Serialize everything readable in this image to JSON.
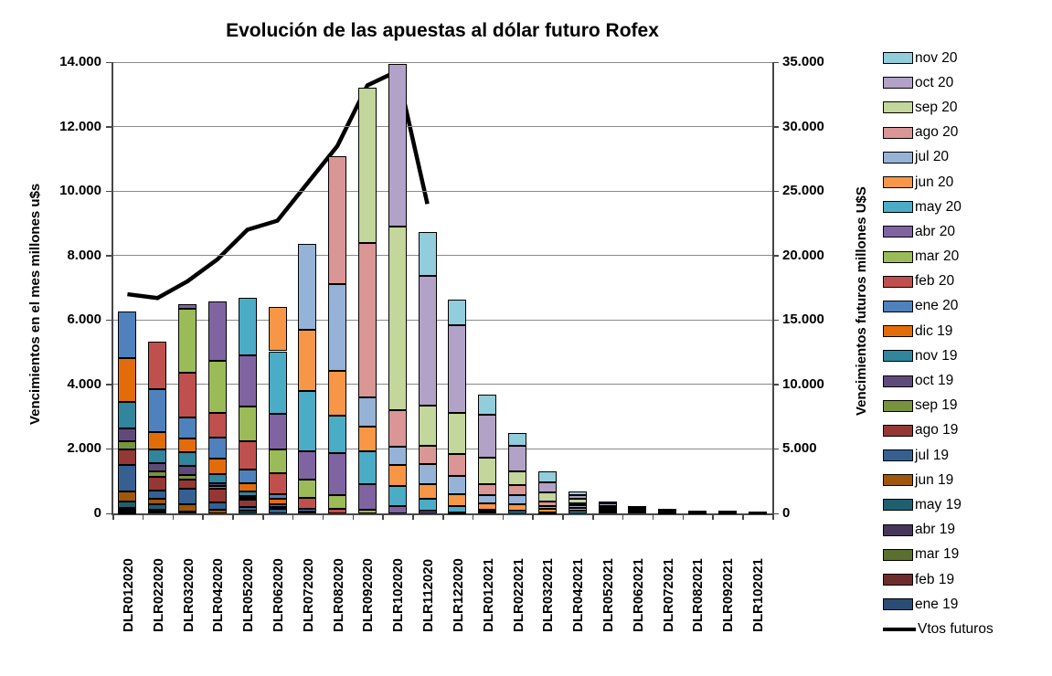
{
  "title": "Evolución de las apuestas al dólar futuro Rofex",
  "left_axis": {
    "title": "Vencimientos en el mes millones u$s",
    "max": 14000,
    "tick_step": 2000,
    "tick_labels": [
      "0",
      "2.000",
      "4.000",
      "6.000",
      "8.000",
      "10.000",
      "12.000",
      "14.000"
    ]
  },
  "right_axis": {
    "title": "Vencimientos futuros millones U$S",
    "max": 35000,
    "tick_step": 5000,
    "tick_labels": [
      "0",
      "5.000",
      "10.000",
      "15.000",
      "20.000",
      "25.000",
      "30.000",
      "35.000"
    ]
  },
  "chart_data": {
    "type": "bar",
    "subtype": "stacked-column-with-line",
    "grid": true,
    "legend_position": "right",
    "legend_order": "top-is-last-stacked-series",
    "categories": [
      "DLR012020",
      "DLR022020",
      "DLR032020",
      "DLR042020",
      "DLR052020",
      "DLR062020",
      "DLR072020",
      "DLR082020",
      "DLR092020",
      "DLR102020",
      "DLR112020",
      "DLR122020",
      "DLR012021",
      "DLR022021",
      "DLR032021",
      "DLR042021",
      "DLR052021",
      "DLR062021",
      "DLR072021",
      "DLR082021",
      "DLR092021",
      "DLR102021"
    ],
    "series": [
      {
        "name": "ene 19",
        "color": "#2A4D75",
        "values": [
          30,
          0,
          0,
          0,
          0,
          0,
          0,
          0,
          0,
          0,
          0,
          0,
          0,
          0,
          0,
          0,
          0,
          0,
          0,
          0,
          0,
          0
        ]
      },
      {
        "name": "feb 19",
        "color": "#6E2C2A",
        "values": [
          40,
          0,
          0,
          0,
          0,
          0,
          0,
          0,
          0,
          0,
          0,
          0,
          0,
          0,
          0,
          0,
          0,
          0,
          0,
          0,
          0,
          0
        ]
      },
      {
        "name": "mar 19",
        "color": "#5B702F",
        "values": [
          30,
          50,
          0,
          0,
          0,
          0,
          0,
          0,
          0,
          0,
          0,
          0,
          0,
          0,
          0,
          0,
          0,
          0,
          0,
          0,
          0,
          0
        ]
      },
      {
        "name": "abr 19",
        "color": "#473659",
        "values": [
          60,
          60,
          0,
          0,
          0,
          0,
          0,
          0,
          0,
          0,
          0,
          0,
          0,
          0,
          0,
          0,
          0,
          0,
          0,
          0,
          0,
          0
        ]
      },
      {
        "name": "may 19",
        "color": "#1F6070",
        "values": [
          200,
          160,
          50,
          0,
          90,
          0,
          0,
          0,
          0,
          0,
          0,
          0,
          0,
          0,
          0,
          0,
          0,
          0,
          0,
          0,
          0,
          0
        ]
      },
      {
        "name": "jun 19",
        "color": "#A05709",
        "values": [
          310,
          190,
          220,
          100,
          0,
          0,
          0,
          0,
          0,
          0,
          0,
          0,
          0,
          0,
          0,
          0,
          0,
          0,
          0,
          0,
          0,
          0
        ]
      },
      {
        "name": "jul 19",
        "color": "#366092",
        "values": [
          820,
          260,
          500,
          250,
          100,
          130,
          0,
          0,
          0,
          0,
          0,
          0,
          0,
          0,
          0,
          0,
          0,
          0,
          0,
          0,
          0,
          0
        ]
      },
      {
        "name": "ago 19",
        "color": "#953735",
        "values": [
          480,
          400,
          280,
          420,
          240,
          80,
          0,
          0,
          0,
          0,
          0,
          0,
          0,
          0,
          0,
          0,
          0,
          0,
          0,
          0,
          0,
          0
        ]
      },
      {
        "name": "sep 19",
        "color": "#77933C",
        "values": [
          255,
          170,
          140,
          80,
          40,
          0,
          0,
          0,
          0,
          0,
          0,
          0,
          0,
          0,
          0,
          0,
          0,
          0,
          0,
          0,
          0,
          0
        ]
      },
      {
        "name": "oct 19",
        "color": "#604A7B",
        "values": [
          420,
          255,
          285,
          90,
          60,
          0,
          0,
          0,
          0,
          0,
          0,
          0,
          0,
          0,
          0,
          0,
          0,
          0,
          0,
          0,
          0,
          0
        ]
      },
      {
        "name": "nov 19",
        "color": "#31859C",
        "values": [
          800,
          445,
          425,
          280,
          160,
          80,
          0,
          0,
          0,
          0,
          0,
          0,
          0,
          0,
          0,
          0,
          0,
          0,
          0,
          0,
          0,
          0
        ]
      },
      {
        "name": "dic 19",
        "color": "#E36C0A",
        "values": [
          1360,
          540,
          425,
          470,
          240,
          150,
          50,
          0,
          0,
          0,
          0,
          0,
          0,
          0,
          0,
          0,
          0,
          0,
          0,
          0,
          0,
          0
        ]
      },
      {
        "name": "ene 20",
        "color": "#4F81BD",
        "values": [
          1450,
          1330,
          660,
          660,
          440,
          160,
          100,
          0,
          0,
          0,
          0,
          0,
          0,
          0,
          0,
          0,
          0,
          0,
          0,
          0,
          0,
          0
        ]
      },
      {
        "name": "feb 20",
        "color": "#C0504D",
        "values": [
          0,
          1470,
          1370,
          760,
          860,
          660,
          330,
          150,
          0,
          0,
          0,
          0,
          0,
          0,
          0,
          0,
          0,
          0,
          0,
          0,
          0,
          0
        ]
      },
      {
        "name": "mar 20",
        "color": "#9BBB59",
        "values": [
          0,
          0,
          1990,
          1620,
          1090,
          710,
          570,
          430,
          100,
          0,
          0,
          0,
          0,
          0,
          0,
          0,
          0,
          0,
          0,
          0,
          0,
          0
        ]
      },
      {
        "name": "abr 20",
        "color": "#8064A2",
        "values": [
          0,
          0,
          135,
          1840,
          1580,
          1120,
          880,
          1280,
          800,
          235,
          95,
          40,
          50,
          0,
          0,
          0,
          0,
          0,
          0,
          0,
          0,
          0
        ]
      },
      {
        "name": "may 20",
        "color": "#4BACC6",
        "values": [
          0,
          0,
          0,
          0,
          1800,
          1940,
          1860,
          1180,
          1040,
          615,
          350,
          200,
          50,
          75,
          35,
          80,
          0,
          0,
          0,
          0,
          0,
          0
        ]
      },
      {
        "name": "jun 20",
        "color": "#F79646",
        "values": [
          0,
          0,
          0,
          0,
          0,
          1370,
          1920,
          1370,
          750,
          660,
          470,
          350,
          215,
          210,
          100,
          100,
          60,
          0,
          0,
          0,
          0,
          0
        ]
      },
      {
        "name": "jul 20",
        "color": "#95B3D7",
        "values": [
          0,
          0,
          0,
          0,
          0,
          0,
          2640,
          2710,
          900,
          570,
          615,
          565,
          255,
          290,
          90,
          70,
          60,
          70,
          30,
          0,
          0,
          0
        ]
      },
      {
        "name": "ago 20",
        "color": "#D99694",
        "values": [
          0,
          0,
          0,
          0,
          0,
          0,
          0,
          3970,
          4790,
          1110,
          580,
          690,
          330,
          300,
          135,
          70,
          60,
          30,
          20,
          0,
          0,
          0
        ]
      },
      {
        "name": "sep 20",
        "color": "#C3D69B",
        "values": [
          0,
          0,
          0,
          0,
          0,
          0,
          0,
          0,
          4820,
          5710,
          1230,
          1260,
          820,
          425,
          280,
          120,
          60,
          40,
          30,
          20,
          20,
          0
        ]
      },
      {
        "name": "oct 20",
        "color": "#B2A2C7",
        "values": [
          0,
          0,
          0,
          0,
          0,
          0,
          0,
          0,
          0,
          5050,
          4020,
          2740,
          1350,
          800,
          330,
          130,
          70,
          40,
          40,
          40,
          40,
          30
        ]
      },
      {
        "name": "nov 20",
        "color": "#92CDDC",
        "values": [
          0,
          0,
          0,
          0,
          0,
          0,
          0,
          0,
          0,
          0,
          1360,
          780,
          610,
          400,
          330,
          100,
          60,
          40,
          30,
          20,
          20,
          20
        ]
      }
    ],
    "line_series": {
      "name": "Vtos futuros",
      "color": "#000000",
      "axis": "right",
      "values": [
        17000,
        16700,
        18000,
        19700,
        22000,
        22700,
        25600,
        28500,
        33200,
        34300,
        24000,
        null,
        null,
        null,
        null,
        null,
        null,
        null,
        null,
        null,
        null,
        null
      ]
    }
  }
}
